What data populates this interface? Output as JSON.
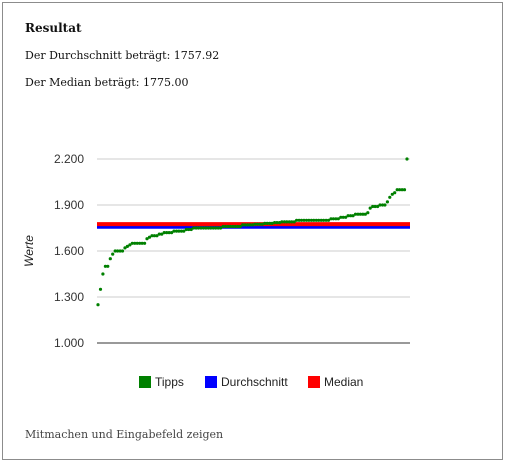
{
  "heading": "Resultat",
  "average_text": "Der Durchschnitt beträgt: 1757.92",
  "median_text": "Der Median beträgt: 1775.00",
  "footer_link": "Mitmachen und Eingabefeld zeigen",
  "chart_data": {
    "type": "scatter",
    "ylabel": "Werte",
    "ylim": [
      1000,
      2200
    ],
    "yticks": [
      {
        "value": 1000,
        "label": "1.000"
      },
      {
        "value": 1300,
        "label": "1.300"
      },
      {
        "value": 1600,
        "label": "1.600"
      },
      {
        "value": 1900,
        "label": "1.900"
      },
      {
        "value": 2200,
        "label": "2.200"
      }
    ],
    "grid": true,
    "legend_position": "bottom",
    "series": [
      {
        "name": "Tipps",
        "color": "#008000",
        "values": [
          1250,
          1350,
          1450,
          1500,
          1500,
          1550,
          1580,
          1600,
          1600,
          1600,
          1600,
          1620,
          1630,
          1640,
          1650,
          1650,
          1650,
          1650,
          1650,
          1650,
          1680,
          1690,
          1700,
          1700,
          1700,
          1710,
          1710,
          1720,
          1720,
          1720,
          1720,
          1730,
          1730,
          1730,
          1730,
          1730,
          1740,
          1740,
          1740,
          1750,
          1750,
          1750,
          1750,
          1750,
          1750,
          1750,
          1750,
          1750,
          1750,
          1750,
          1750,
          1760,
          1760,
          1760,
          1760,
          1760,
          1760,
          1760,
          1760,
          1770,
          1770,
          1770,
          1770,
          1770,
          1775,
          1775,
          1775,
          1775,
          1780,
          1780,
          1780,
          1780,
          1785,
          1785,
          1785,
          1790,
          1790,
          1790,
          1790,
          1790,
          1790,
          1800,
          1800,
          1800,
          1800,
          1800,
          1800,
          1800,
          1800,
          1800,
          1800,
          1800,
          1800,
          1800,
          1800,
          1810,
          1810,
          1810,
          1810,
          1820,
          1820,
          1820,
          1830,
          1830,
          1830,
          1840,
          1840,
          1840,
          1840,
          1840,
          1850,
          1880,
          1890,
          1890,
          1890,
          1900,
          1900,
          1900,
          1920,
          1950,
          1970,
          1980,
          2000,
          2000,
          2000,
          2000,
          2200
        ]
      },
      {
        "name": "Durchschnitt",
        "color": "#0000ff",
        "value": 1757.92
      },
      {
        "name": "Median",
        "color": "#ff0000",
        "value": 1775
      }
    ]
  }
}
